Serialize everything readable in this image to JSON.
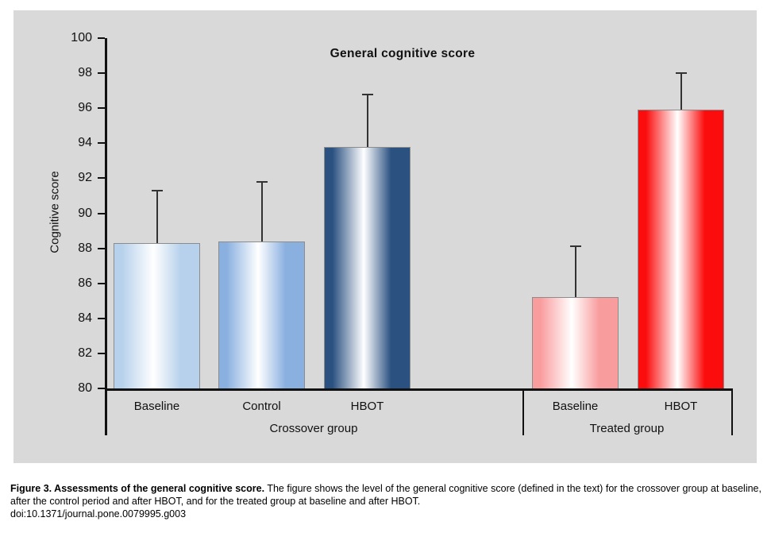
{
  "chart_data": {
    "type": "bar",
    "title": "General cognitive score",
    "ylabel": "Cognitive score",
    "ylim": [
      80,
      100
    ],
    "ytick_step": 2,
    "yticks": [
      80,
      82,
      84,
      86,
      88,
      90,
      92,
      94,
      96,
      98,
      100
    ],
    "grid": false,
    "legend": "none",
    "plot_background": "#d9d9d9",
    "highlight_color": "#ffffff",
    "error_bar_color": "#333333",
    "groups": [
      {
        "label": "Crossover group",
        "bars": [
          {
            "label": "Baseline",
            "value": 88.3,
            "error_top": 91.3,
            "color": "#b7d1ec"
          },
          {
            "label": "Control",
            "value": 88.4,
            "error_top": 91.8,
            "color": "#8ab0e0"
          },
          {
            "label": "HBOT",
            "value": 93.8,
            "error_top": 96.8,
            "color": "#2a5180"
          }
        ]
      },
      {
        "label": "Treated group",
        "bars": [
          {
            "label": "Baseline",
            "value": 85.2,
            "error_top": 88.1,
            "color": "#f99c9e"
          },
          {
            "label": "HBOT",
            "value": 95.9,
            "error_top": 98.0,
            "color": "#fb0d0d"
          }
        ]
      }
    ]
  },
  "caption": {
    "lead": "Figure 3. Assessments of the general cognitive score.",
    "text": " The figure shows the level of the general cognitive score (defined in the text) for the crossover group at baseline, after the control period and after HBOT, and for the treated group at baseline and after HBOT.",
    "doi": "doi:10.1371/journal.pone.0079995.g003"
  }
}
